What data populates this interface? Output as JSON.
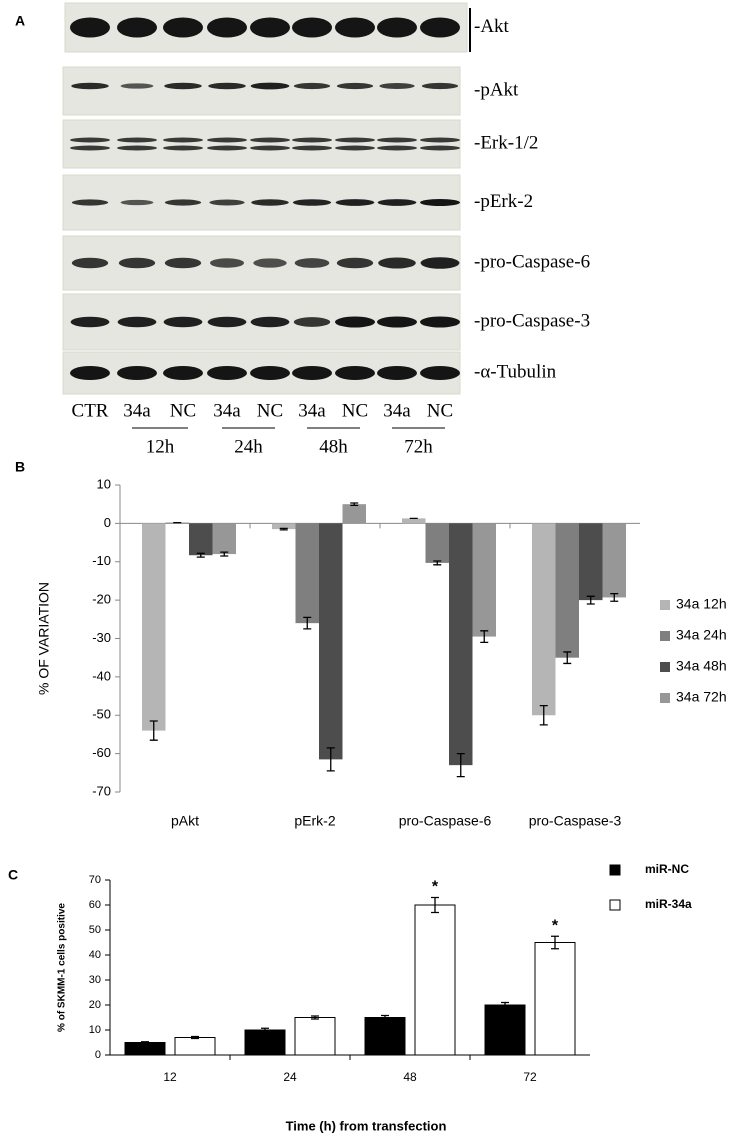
{
  "panel_a": {
    "label": "A",
    "blots": [
      "-Akt",
      "-pAkt",
      "-Erk-1/2",
      "-pErk-2",
      "-pro-Caspase-6",
      "-pro-Caspase-3",
      "-α-Tubulin"
    ],
    "lanes": [
      "CTR",
      "34a",
      "NC",
      "34a",
      "NC",
      "34a",
      "NC",
      "34a",
      "NC"
    ],
    "times": [
      "12h",
      "24h",
      "48h",
      "72h"
    ]
  },
  "chart_data": [
    {
      "type": "bar",
      "label": "B",
      "ylabel": "% OF VARIATION",
      "categories": [
        "pAkt",
        "pErk-2",
        "pro-Caspase-6",
        "pro-Caspase-3"
      ],
      "series": [
        {
          "name": "34a 12h",
          "color": "#b5b5b5",
          "values": [
            -54,
            -1.5,
            1.3,
            -50
          ],
          "errors": [
            2.5,
            0.2,
            0,
            2.5
          ]
        },
        {
          "name": "34a 24h",
          "color": "#7f7f7f",
          "values": [
            0.2,
            -26,
            -10.3,
            -35
          ],
          "errors": [
            0,
            1.5,
            0.5,
            1.5
          ]
        },
        {
          "name": "34a 48h",
          "color": "#4d4d4d",
          "values": [
            -8.3,
            -61.5,
            -63,
            -20
          ],
          "errors": [
            0.5,
            3,
            3,
            1
          ]
        },
        {
          "name": "34a 72h",
          "color": "#979797",
          "values": [
            -8,
            5,
            -29.5,
            -19.3
          ],
          "errors": [
            0.5,
            0.3,
            1.5,
            1
          ]
        }
      ],
      "ylim": [
        -70,
        10
      ],
      "yticks": [
        -70,
        -60,
        -50,
        -40,
        -30,
        -20,
        -10,
        0,
        10
      ],
      "legend": "right"
    },
    {
      "type": "bar",
      "label": "C",
      "ylabel": "% of SKMM-1 cells positive",
      "xlabel": "Time (h) from transfection",
      "categories": [
        "12",
        "24",
        "48",
        "72"
      ],
      "series": [
        {
          "name": "miR-NC",
          "color": "#000000",
          "values": [
            5,
            10,
            15,
            20
          ],
          "errors": [
            0.3,
            0.7,
            0.8,
            1
          ]
        },
        {
          "name": "miR-34a",
          "color": "#ffffff",
          "values": [
            7,
            15,
            60,
            45
          ],
          "errors": [
            0.4,
            0.6,
            3,
            2.5
          ]
        }
      ],
      "edgecolor": "#000000",
      "annotations": [
        {
          "text": "*",
          "x": "48",
          "series": "miR-34a"
        },
        {
          "text": "*",
          "x": "72",
          "series": "miR-34a"
        }
      ],
      "ylim": [
        0,
        70
      ],
      "yticks": [
        0,
        10,
        20,
        30,
        40,
        50,
        60,
        70
      ],
      "legend": "top-right"
    }
  ]
}
